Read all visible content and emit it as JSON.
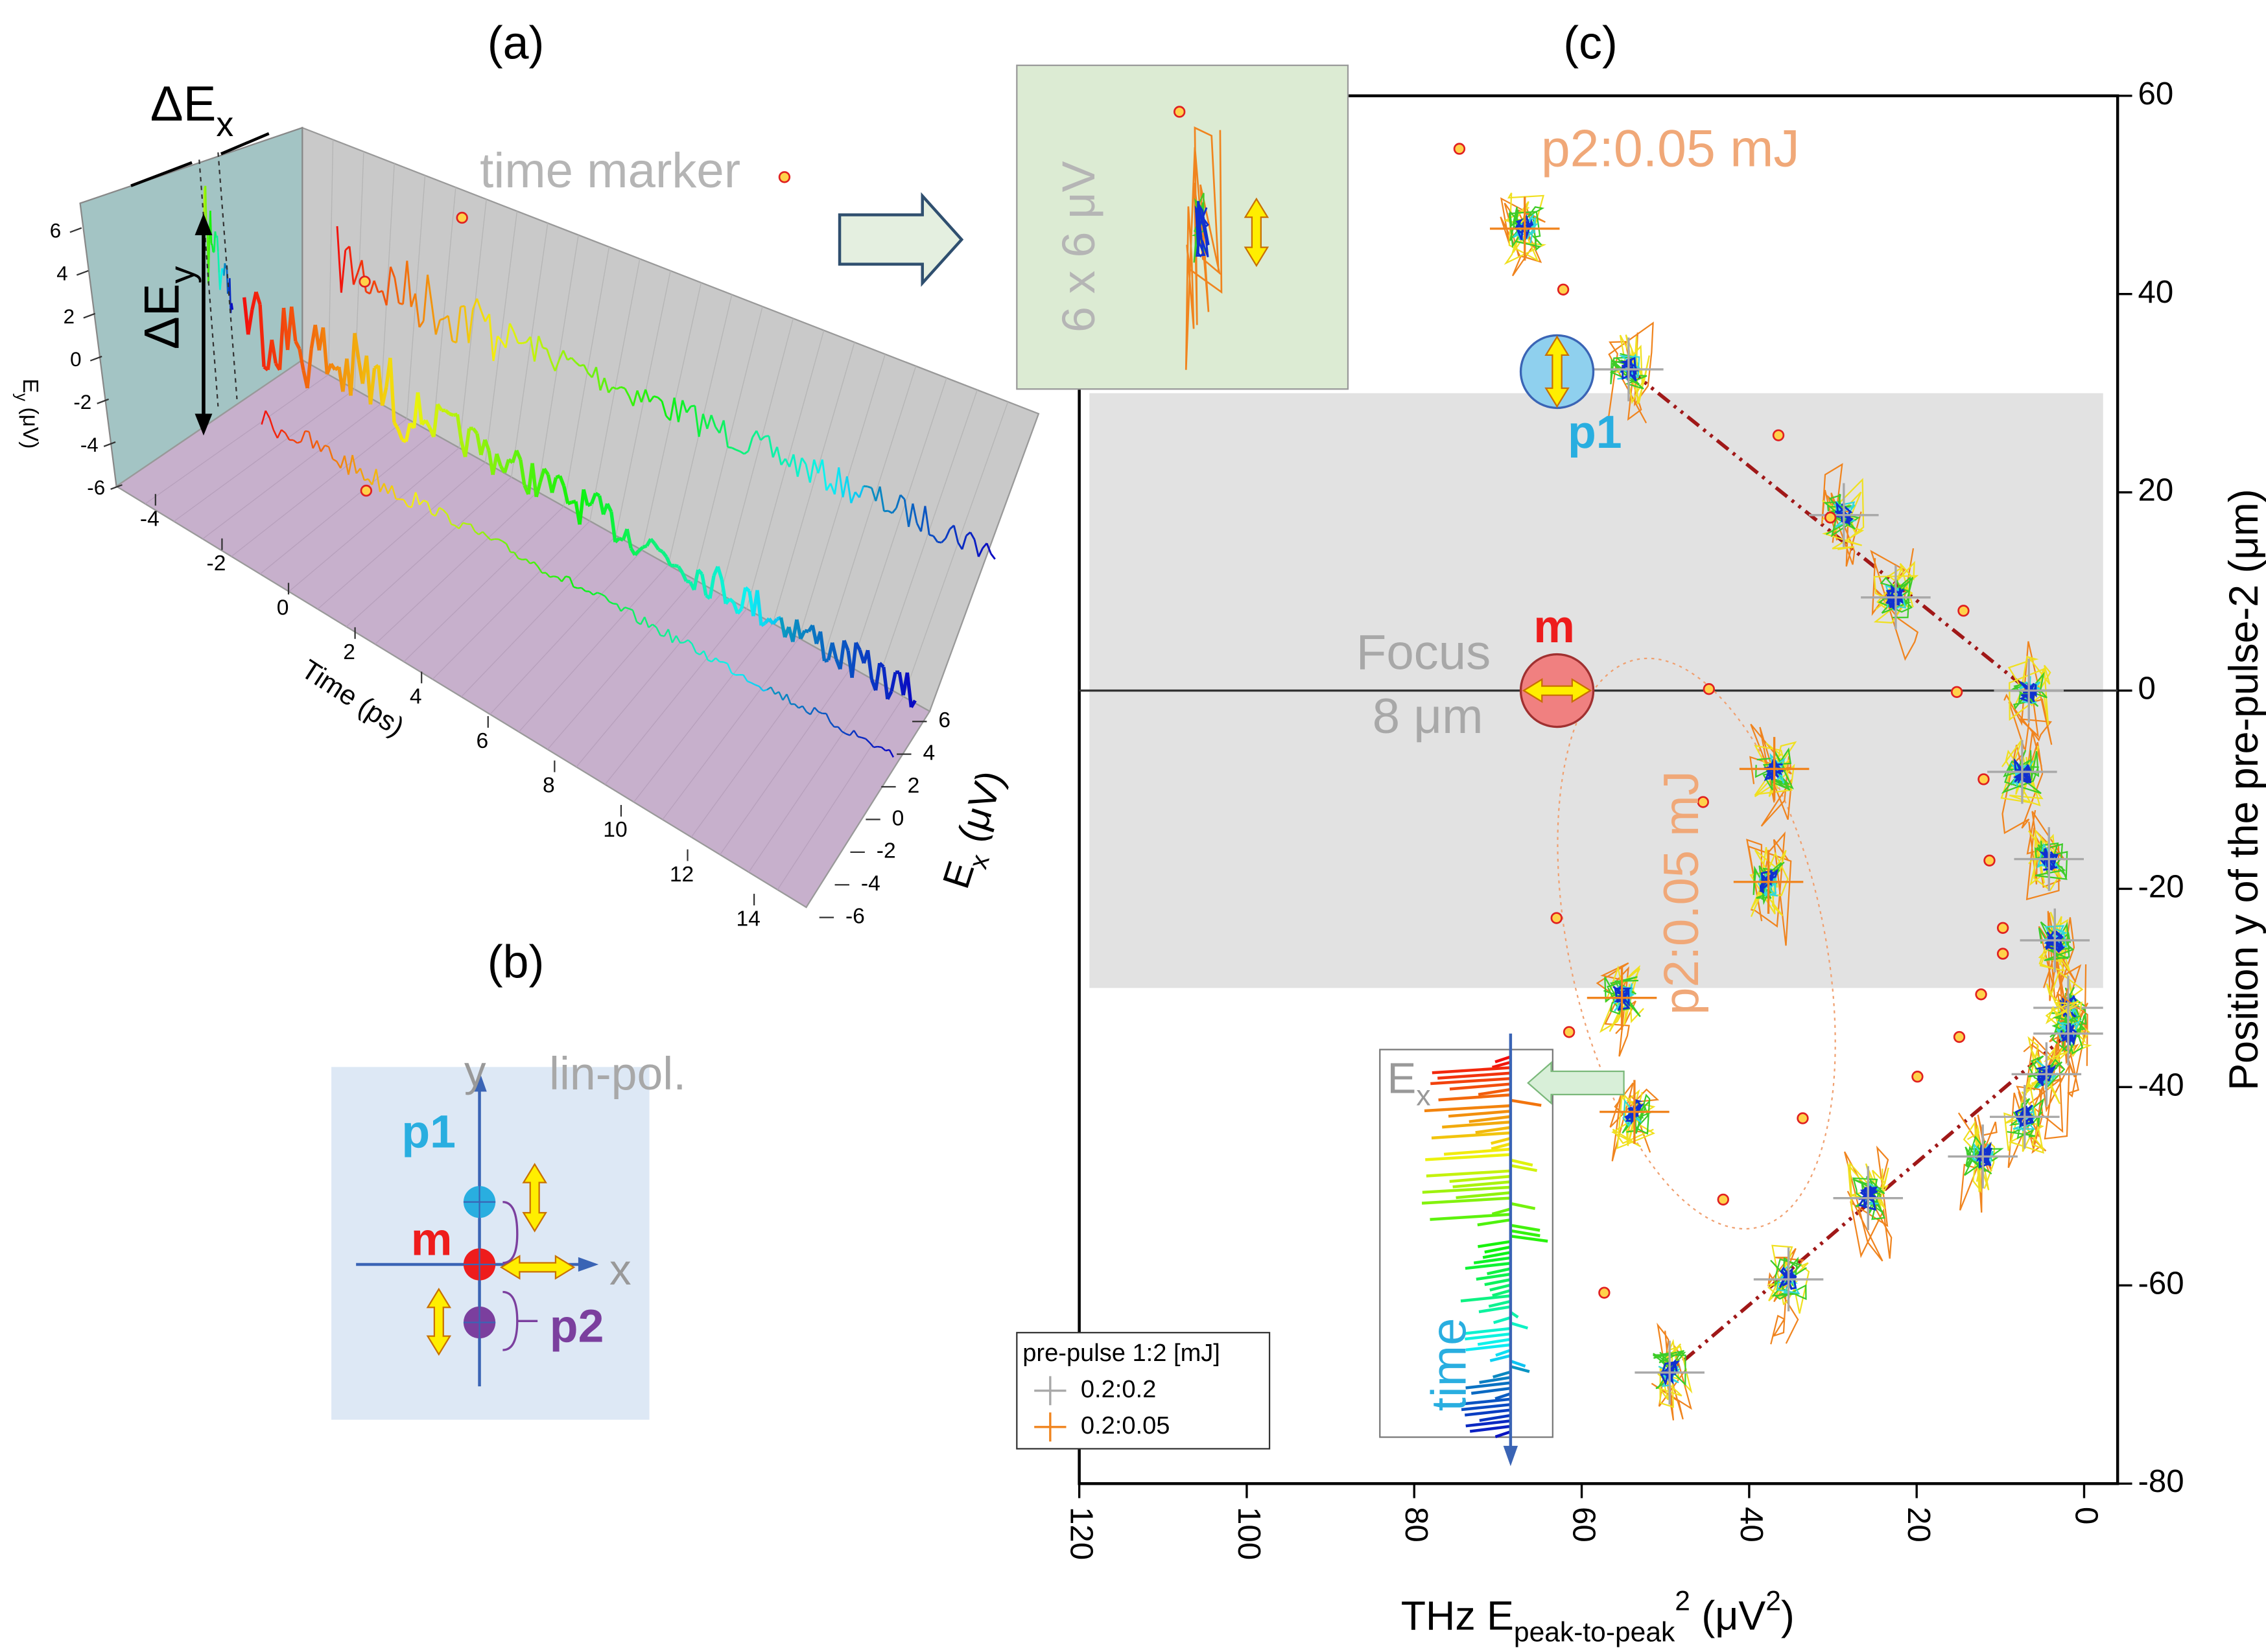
{
  "panel_labels": [
    "(a)",
    "(b)",
    "(c)"
  ],
  "chart_data": [
    {
      "type": "scatter",
      "x_label": [
        "THz E",
        "peak-to-peak",
        "2",
        " (μV",
        "2",
        ")"
      ],
      "y_label": "Position y of the pre-pulse-2 (μm)",
      "xlim": [
        120,
        -4
      ],
      "xticks": [
        120,
        100,
        80,
        60,
        40,
        20,
        0
      ],
      "ylim": [
        -80,
        60
      ],
      "yticks": [
        60,
        40,
        20,
        0,
        -20,
        -40,
        -60,
        -80
      ],
      "shaded_ylim": [
        -30,
        30
      ],
      "focus_y": 0,
      "legend_title": "pre-pulse 1:2 [mJ]",
      "legend_position": "lower left",
      "series": [
        {
          "name": "0.2:0.2",
          "color": "#a8a8a8",
          "x": [
            54.4,
            28.7,
            22.5,
            6.6,
            7.4,
            4.2,
            3.5,
            1.9,
            1.9,
            4.5,
            7.1,
            12.1,
            25.8,
            35.3,
            49.5
          ],
          "values": [
            32.4,
            17.7,
            9.4,
            0,
            -8.2,
            -17,
            -25.2,
            -32,
            -34.6,
            -38.7,
            -43,
            -47,
            -51.2,
            -59.4,
            -68.8
          ]
        },
        {
          "name": "0.2:0.05",
          "color": "#f0841e",
          "x": [
            66.8,
            37,
            37.7,
            55.2,
            53.7
          ],
          "values": [
            46.6,
            -7.9,
            -19.3,
            -31,
            -42.5
          ]
        }
      ],
      "annotations": {
        "p2_top": "p2:0.05 mJ",
        "p2_side": "p2:0.05 mJ",
        "p1": "p1",
        "m": "m",
        "focus": "Focus",
        "focus_size": "8 μm",
        "inset_scale": "6 x 6 μV",
        "ex_inset": [
          "E",
          "x"
        ],
        "time": "time"
      }
    },
    {
      "type": "line3d",
      "x_label": "Time (ps)",
      "y_label": [
        "E",
        "y",
        " (μV)"
      ],
      "z_label": [
        "E",
        "x",
        " (μV)"
      ],
      "xlim": [
        -5,
        15
      ],
      "xticks": [
        -4,
        -2,
        0,
        2,
        4,
        6,
        8,
        10,
        12,
        14
      ],
      "ylim": [
        -6,
        6
      ],
      "yticks": [
        6,
        4,
        2,
        0,
        -2,
        -4,
        -6
      ],
      "zlim": [
        -6,
        6
      ],
      "zticks": [
        6,
        4,
        2,
        0,
        -2,
        -4,
        -6
      ],
      "annotations": {
        "delta_x": [
          "ΔE",
          "x"
        ],
        "delta_y": [
          "ΔE",
          "y"
        ],
        "time_marker": "time marker"
      }
    }
  ],
  "diagram": {
    "y": "y",
    "x": "x",
    "polarization": "lin-pol.",
    "p1": "p1",
    "m": "m",
    "p2": "p2"
  }
}
